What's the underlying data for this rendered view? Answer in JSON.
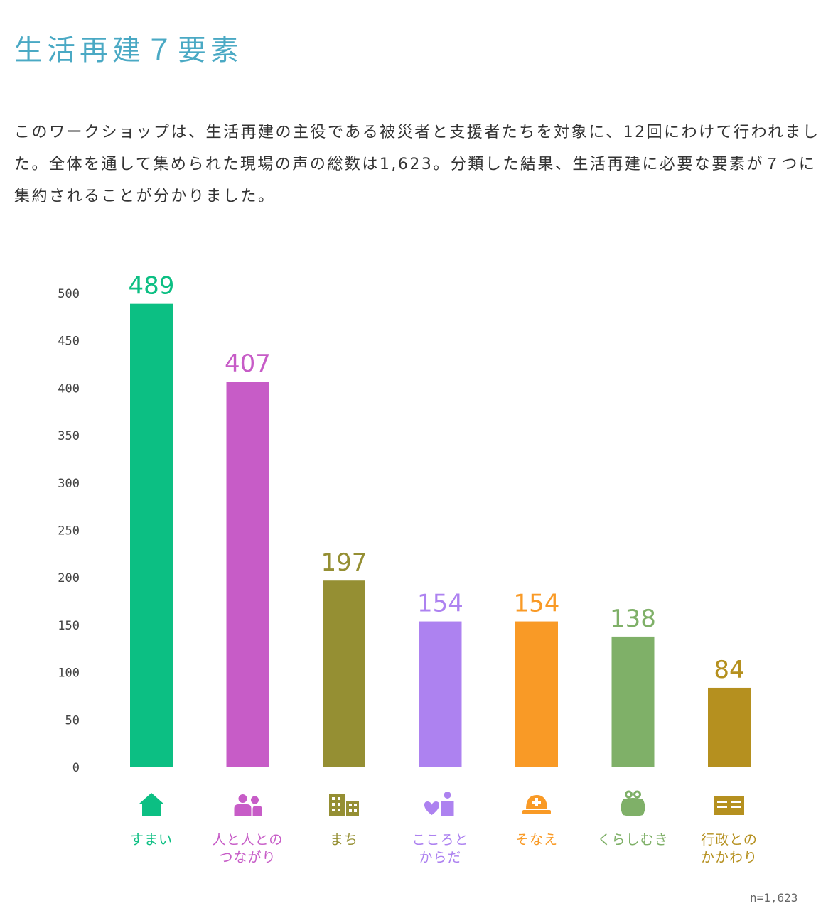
{
  "page": {
    "title": "生活再建７要素",
    "intro": "このワークショップは、生活再建の主役である被災者と支援者たちを対象に、12回にわけて行われました。全体を通して集められた現場の声の総数は1,623。分類した結果、生活再建に必要な要素が７つに集約されることが分かりました。",
    "note": "n=1,623"
  },
  "chart_data": {
    "type": "bar",
    "categories": [
      [
        "すまい"
      ],
      [
        "人と人との",
        "つながり"
      ],
      [
        "まち"
      ],
      [
        "こころと",
        "からだ"
      ],
      [
        "そなえ"
      ],
      [
        "くらしむき"
      ],
      [
        "行政との",
        "かかわり"
      ]
    ],
    "values": [
      489,
      407,
      197,
      154,
      154,
      138,
      84
    ],
    "colors": [
      "#0cbf83",
      "#c75cc7",
      "#958f33",
      "#ad82f0",
      "#f99a26",
      "#7fb068",
      "#b5901f"
    ],
    "icons": [
      "house-icon",
      "people-icon",
      "buildings-icon",
      "heart-person-icon",
      "helmet-icon",
      "purse-icon",
      "document-icon"
    ],
    "yticks": [
      0,
      50,
      100,
      150,
      200,
      250,
      300,
      350,
      400,
      450,
      500
    ],
    "ylim": [
      0,
      500
    ],
    "grid": false,
    "legend": "none"
  }
}
